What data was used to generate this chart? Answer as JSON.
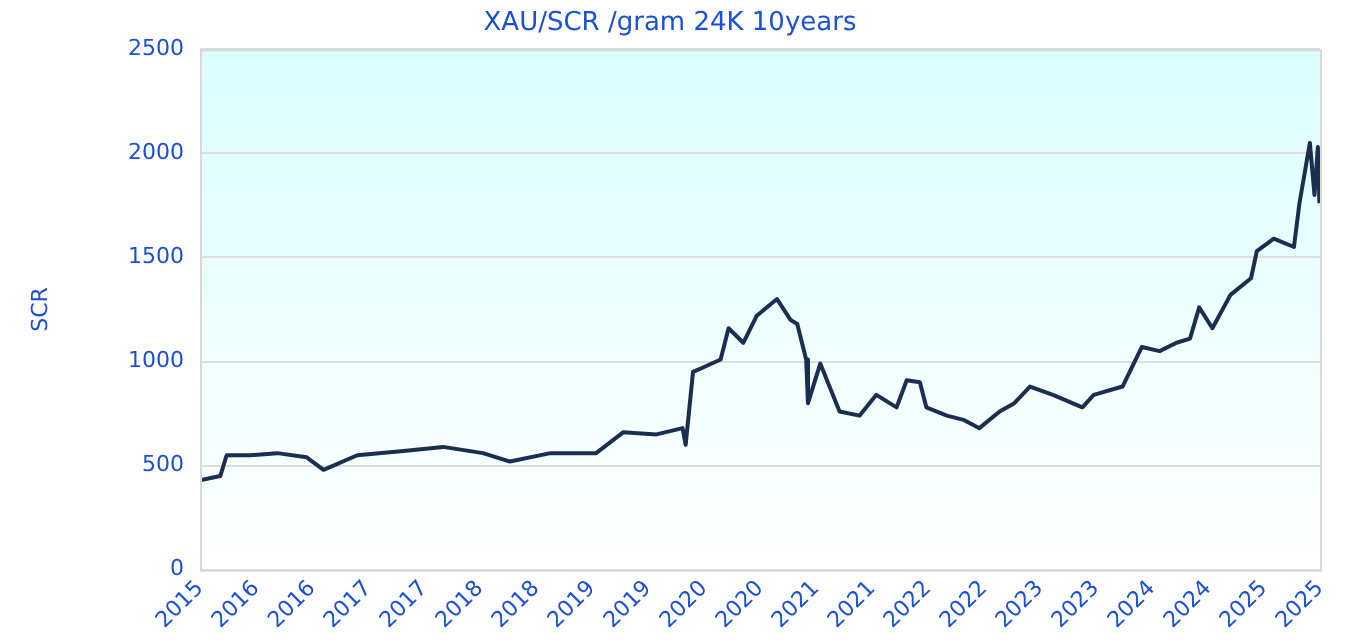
{
  "chart_data": {
    "type": "line",
    "title": "XAU/SCR /gram 24K 10years",
    "ylabel": "SCR",
    "x": [
      "2015-10-01",
      "2015-12-06",
      "2015-12-27",
      "2016-03-13",
      "2016-06-09",
      "2016-09-13",
      "2016-11-07",
      "2017-02-25",
      "2017-07-26",
      "2017-12-02",
      "2018-04-11",
      "2018-07-08",
      "2018-11-17",
      "2019-04-15",
      "2019-07-12",
      "2019-10-29",
      "2020-01-22",
      "2020-02-01",
      "2020-02-25",
      "2020-03-27",
      "2020-05-25",
      "2020-06-20",
      "2020-08-07",
      "2020-09-20",
      "2020-11-25",
      "2021-01-08",
      "2021-01-30",
      "2021-02-28",
      "2021-03-06",
      "2021-04-15",
      "2021-06-17",
      "2021-08-21",
      "2021-10-15",
      "2021-12-20",
      "2022-01-22",
      "2022-03-06",
      "2022-03-27",
      "2022-06-02",
      "2022-07-26",
      "2022-09-16",
      "2022-11-21",
      "2023-01-08",
      "2023-02-28",
      "2023-05-14",
      "2023-08-18",
      "2023-09-24",
      "2023-12-27",
      "2024-02-28",
      "2024-04-26",
      "2024-06-20",
      "2024-08-03",
      "2024-09-02",
      "2024-10-15",
      "2024-12-13",
      "2025-02-18",
      "2025-03-09",
      "2025-05-03",
      "2025-07-08",
      "2025-07-26",
      "2025-08-29",
      "2025-09-13",
      "2025-09-24",
      "2025-09-29"
    ],
    "series": [
      {
        "color": "#1a2e50",
        "values": [
          430,
          450,
          550,
          550,
          560,
          540,
          480,
          550,
          570,
          590,
          560,
          520,
          560,
          560,
          660,
          650,
          680,
          600,
          950,
          970,
          1010,
          1160,
          1090,
          1220,
          1300,
          1200,
          1180,
          1010,
          800,
          990,
          760,
          740,
          840,
          780,
          910,
          900,
          780,
          740,
          720,
          680,
          760,
          800,
          880,
          840,
          780,
          840,
          880,
          1070,
          1050,
          1090,
          1110,
          1260,
          1160,
          1320,
          1400,
          1530,
          1590,
          1550,
          1760,
          2050,
          1800,
          2030,
          1760
        ]
      }
    ],
    "xlim": [
      "2015-10-01",
      "2025-10-01"
    ],
    "xticks": [
      {
        "value": "2015-10-01",
        "label": "2015"
      },
      {
        "value": "2016-04-01",
        "label": "2016"
      },
      {
        "value": "2016-10-01",
        "label": "2016"
      },
      {
        "value": "2017-04-01",
        "label": "2017"
      },
      {
        "value": "2017-10-01",
        "label": "2017"
      },
      {
        "value": "2018-04-01",
        "label": "2018"
      },
      {
        "value": "2018-10-01",
        "label": "2018"
      },
      {
        "value": "2019-04-01",
        "label": "2019"
      },
      {
        "value": "2019-10-01",
        "label": "2019"
      },
      {
        "value": "2020-04-01",
        "label": "2020"
      },
      {
        "value": "2020-10-01",
        "label": "2020"
      },
      {
        "value": "2021-04-01",
        "label": "2021"
      },
      {
        "value": "2021-10-01",
        "label": "2021"
      },
      {
        "value": "2022-04-01",
        "label": "2022"
      },
      {
        "value": "2022-10-01",
        "label": "2022"
      },
      {
        "value": "2023-04-01",
        "label": "2023"
      },
      {
        "value": "2023-10-01",
        "label": "2023"
      },
      {
        "value": "2024-04-01",
        "label": "2024"
      },
      {
        "value": "2024-10-01",
        "label": "2024"
      },
      {
        "value": "2025-04-01",
        "label": "2025"
      },
      {
        "value": "2025-10-01",
        "label": "2025"
      }
    ],
    "ylim": [
      0,
      2500
    ],
    "yticks": [
      0,
      500,
      1000,
      1500,
      2000,
      2500
    ],
    "grid": "y",
    "legend": false,
    "marker": "none",
    "line_style": "solid"
  }
}
